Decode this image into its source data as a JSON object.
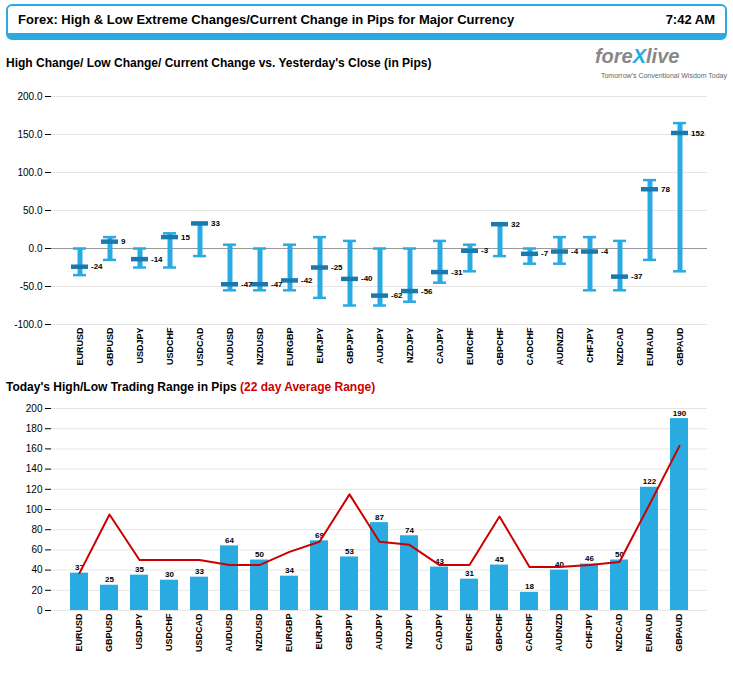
{
  "chart_data": [
    {
      "type": "range",
      "title": "High Change/ Low Change/ Current Change vs. Yesterday's Close (in Pips)",
      "annotations": [
        {
          "text": "Forex:  High & Low Extreme Changes/Current Change in Pips for Major Currency"
        },
        {
          "text": "7:42 AM"
        },
        {
          "text": "fore",
          "color": "#888888"
        },
        {
          "text": "X",
          "color": "#29ABE2"
        },
        {
          "text": "live",
          "color": "#888888"
        },
        {
          "text": "Tomorrow's Conventional Wisdom Today",
          "color": "#666666"
        }
      ],
      "categories": [
        "EURUSD",
        "GBPUSD",
        "USDJPY",
        "USDCHF",
        "USDCAD",
        "AUDUSD",
        "NZDUSD",
        "EURGBP",
        "EURJPY",
        "GBPJPY",
        "AUDJPY",
        "NZDJPY",
        "CADJPY",
        "EURCHF",
        "GBPCHF",
        "CADCHF",
        "AUDNZD",
        "CHFJPY",
        "NZDCAD",
        "EURAUD",
        "GBPAUD"
      ],
      "series": [
        {
          "type": "range",
          "color": "#29ABE2",
          "high": [
            0,
            15,
            0,
            20,
            33,
            5,
            0,
            5,
            15,
            10,
            0,
            0,
            10,
            5,
            32,
            0,
            15,
            15,
            10,
            90,
            165
          ],
          "low": [
            -35,
            -15,
            -25,
            -25,
            -10,
            -55,
            -55,
            -55,
            -65,
            -75,
            -75,
            -70,
            -45,
            -30,
            -10,
            -20,
            -20,
            -55,
            -55,
            -15,
            -30
          ]
        },
        {
          "type": "tick",
          "color": "#1a7ab0",
          "data_labels": true,
          "values": [
            -24,
            9,
            -14,
            15,
            33,
            -47,
            -47,
            -42,
            -25,
            -40,
            -62,
            -56,
            -31,
            -3,
            32,
            -7,
            -4,
            -4,
            -37,
            78,
            152
          ]
        }
      ],
      "ylim": [
        -100,
        200
      ],
      "yticks": [
        {
          "value": -100,
          "label": "-100.0"
        },
        {
          "value": -50,
          "label": "-50.0"
        },
        {
          "value": 0,
          "label": "0.0"
        },
        {
          "value": 50,
          "label": "50.0"
        },
        {
          "value": 100,
          "label": "100.0"
        },
        {
          "value": 150,
          "label": "150.0"
        },
        {
          "value": 200,
          "label": "200.0"
        }
      ],
      "grid": true
    },
    {
      "type": "bar",
      "title": "Today's High/Low Trading Range in Pips ",
      "subtitle": "(22 day Average Range)",
      "categories": [
        "EURUSD",
        "GBPUSD",
        "USDJPY",
        "USDCHF",
        "USDCAD",
        "AUDUSD",
        "NZDUSD",
        "EURGBP",
        "EURJPY",
        "GBPJPY",
        "AUDJPY",
        "NZDJPY",
        "CADJPY",
        "EURCHF",
        "GBPCHF",
        "CADCHF",
        "AUDNZD",
        "CHFJPY",
        "NZDCAD",
        "EURAUD",
        "GBPAUD"
      ],
      "series": [
        {
          "type": "bar",
          "color": "#29ABE2",
          "data_labels": true,
          "values": [
            37,
            25,
            35,
            30,
            33,
            64,
            50,
            34,
            69,
            53,
            87,
            74,
            43,
            31,
            45,
            18,
            40,
            46,
            50,
            122,
            190
          ]
        },
        {
          "type": "line",
          "color": "#CC0000",
          "values": [
            37,
            95,
            50,
            50,
            50,
            45,
            45,
            58,
            68,
            115,
            68,
            65,
            45,
            45,
            93,
            43,
            43,
            45,
            48,
            105,
            163
          ]
        }
      ],
      "ylim": [
        0,
        200
      ],
      "yticks": [
        0,
        20,
        40,
        60,
        80,
        100,
        120,
        140,
        160,
        180,
        200
      ],
      "grid": true
    }
  ]
}
